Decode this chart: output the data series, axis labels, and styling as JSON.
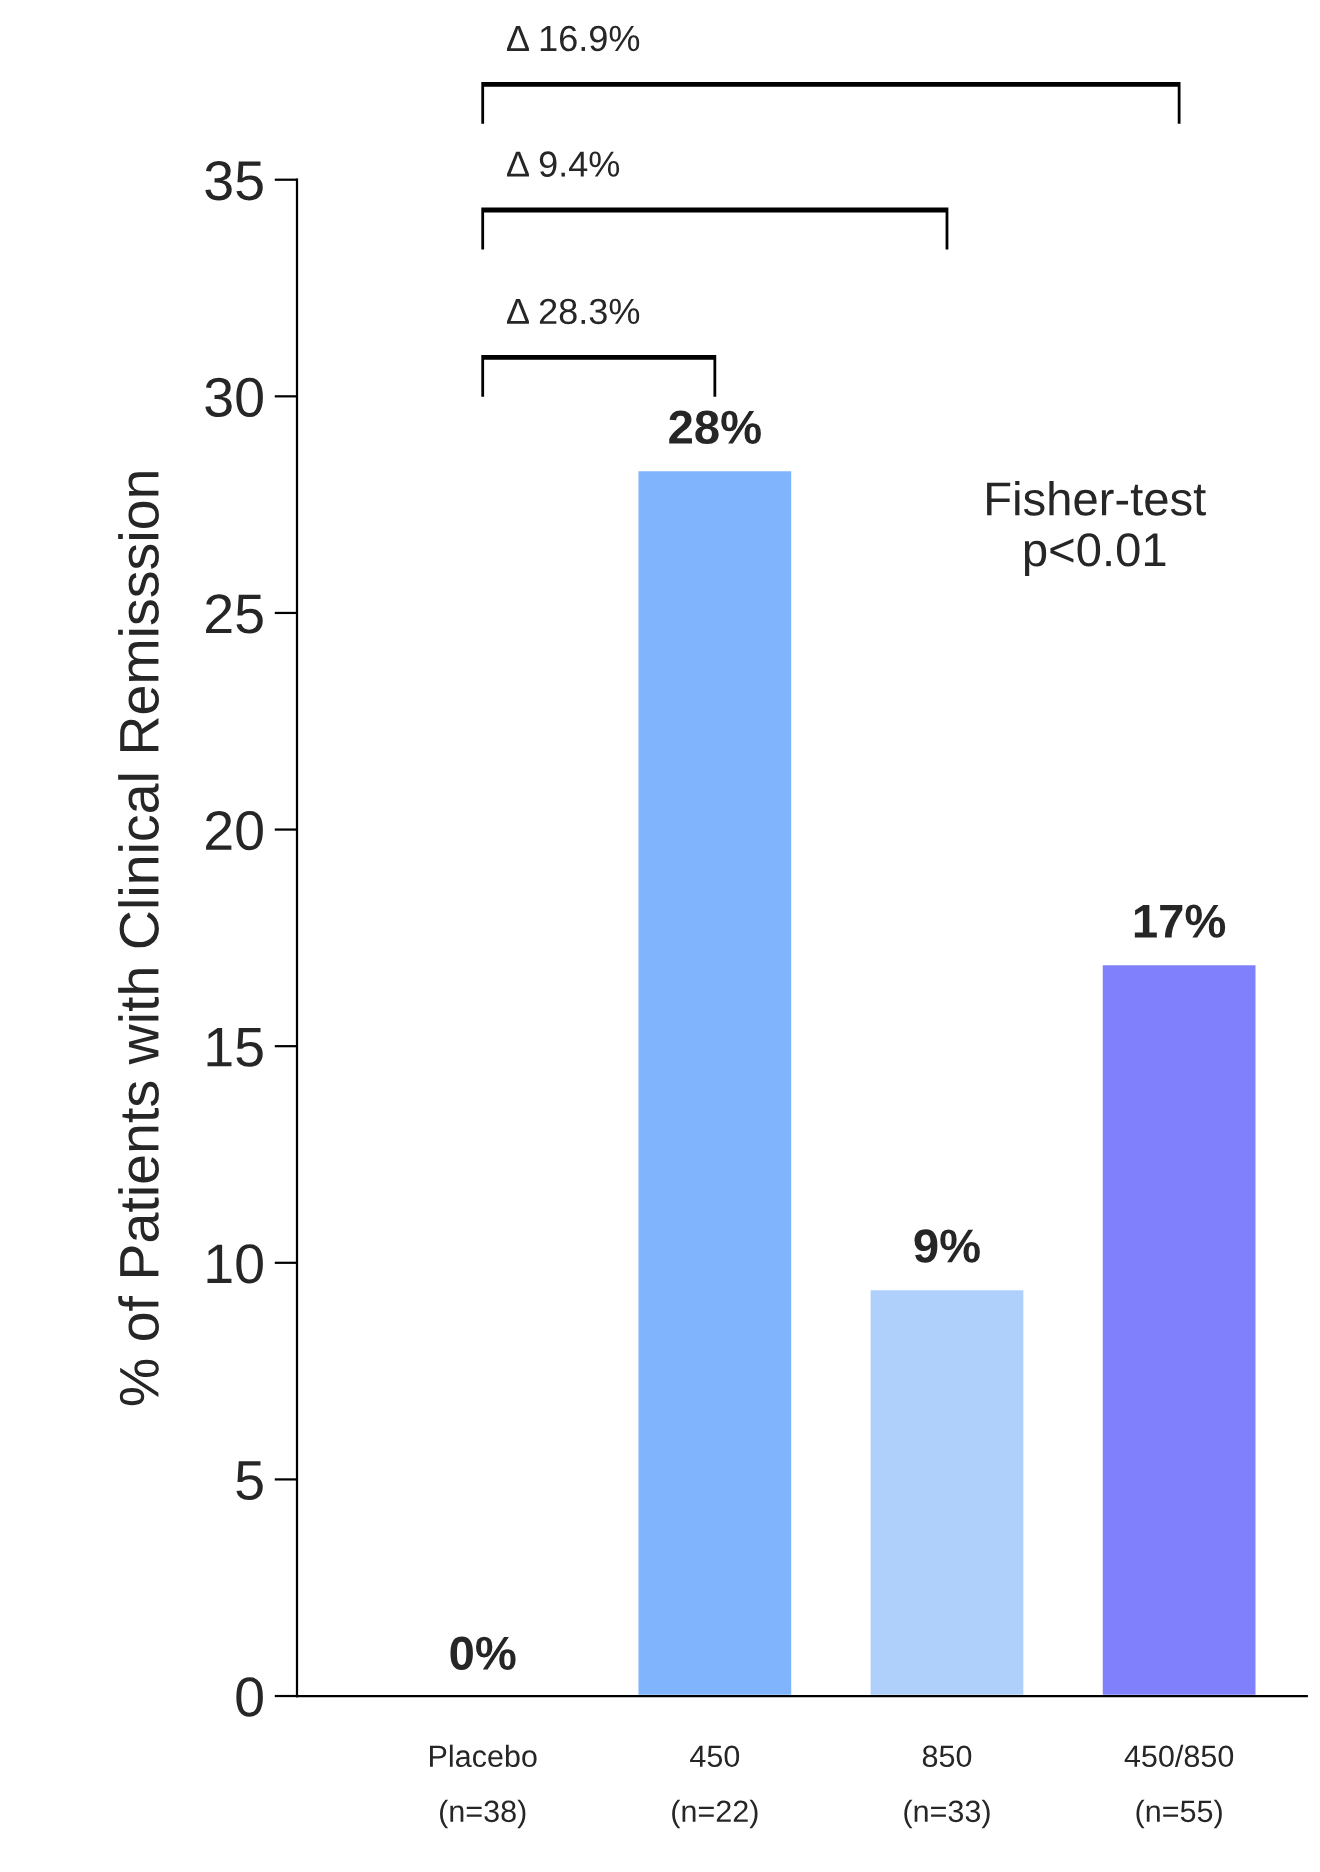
{
  "chart_data": {
    "type": "bar",
    "ylabel": "% of Patients with Clinical Remisssion",
    "categories": [
      "Placebo\n(n=38)",
      "450\n(n=22)",
      "850\n(n=33)",
      "450/850\n(n=55)"
    ],
    "values": [
      0,
      28.3,
      9.4,
      16.9
    ],
    "colors": [
      "#ffffff",
      "#80b4fc",
      "#b0d0fc",
      "#8080fc"
    ],
    "value_labels": [
      "0%",
      "28%",
      "9%",
      "17%"
    ],
    "ylim": [
      0,
      35
    ],
    "yticks": [
      0,
      5,
      10,
      15,
      20,
      25,
      30,
      35
    ],
    "grid": false,
    "legend": false,
    "annotations": [
      "Δ 28.3%",
      "Δ 9.4%",
      "Δ 16.9%",
      "Fisher-test\np<0.01"
    ]
  }
}
